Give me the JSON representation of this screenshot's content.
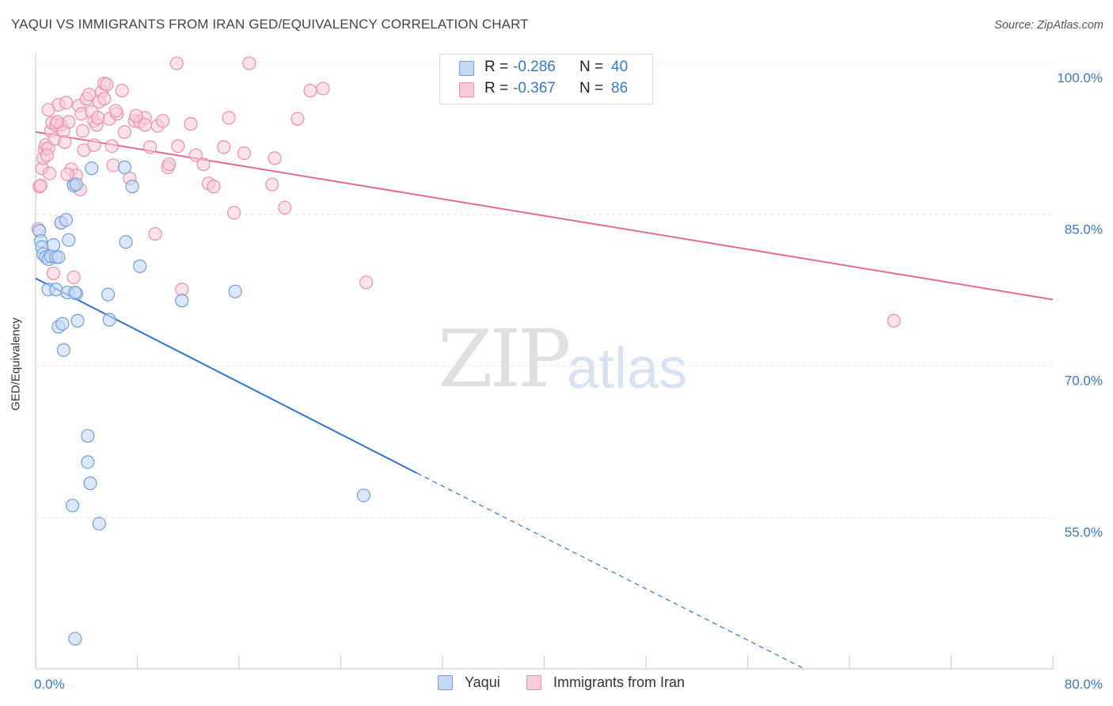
{
  "title": "YAQUI VS IMMIGRANTS FROM IRAN GED/EQUIVALENCY CORRELATION CHART",
  "source": "Source: ZipAtlas.com",
  "watermark": {
    "zip": "ZIP",
    "atlas": "atlas"
  },
  "stats": {
    "rows": [
      {
        "r_label": "R = ",
        "r_value": "-0.286",
        "n_label": "N = ",
        "n_value": "40"
      },
      {
        "r_label": "R = ",
        "r_value": "-0.367",
        "n_label": "N = ",
        "n_value": "86"
      }
    ]
  },
  "legend": {
    "items": [
      "Yaqui",
      "Immigrants from Iran"
    ]
  },
  "colors": {
    "yaqui_fill": "#c5d9f4",
    "yaqui_stroke": "#6f9fde",
    "yaqui_line": "#3174d0",
    "iran_fill": "#f9ccd9",
    "iran_stroke": "#ee8fae",
    "iran_line": "#e46a96",
    "tick": "#3a78c8",
    "grid": "#e6e6e6"
  },
  "chart_data": {
    "type": "scatter",
    "title": "YAQUI VS IMMIGRANTS FROM IRAN GED/EQUIVALENCY CORRELATION CHART",
    "xlabel": "",
    "ylabel": "GED/Equivalency",
    "xlim": [
      0,
      80
    ],
    "ylim": [
      40,
      102.5
    ],
    "x_tick_labels": [
      "0.0%",
      "80.0%"
    ],
    "y_ticks": [
      55,
      70,
      85,
      100
    ],
    "y_tick_labels": [
      "55.0%",
      "70.0%",
      "85.0%",
      "100.0%"
    ],
    "grid": true,
    "legend_position": "bottom-center",
    "series": [
      {
        "name": "Yaqui",
        "r": -0.286,
        "n": 40,
        "trend": {
          "x0": 0,
          "y0": 78.7,
          "x1": 30,
          "y1": 59.4,
          "dashed_to_x": 60.5,
          "dashed_to_y": 40
        },
        "points": [
          [
            0.3,
            83.4
          ],
          [
            0.4,
            82.4
          ],
          [
            0.5,
            81.8
          ],
          [
            0.6,
            81.1
          ],
          [
            0.8,
            80.8
          ],
          [
            1.0,
            80.6
          ],
          [
            1.2,
            80.9
          ],
          [
            1.4,
            82.0
          ],
          [
            1.6,
            80.8
          ],
          [
            1.8,
            80.8
          ],
          [
            2.0,
            84.2
          ],
          [
            2.4,
            84.5
          ],
          [
            2.6,
            82.5
          ],
          [
            3.0,
            87.9
          ],
          [
            3.2,
            88.0
          ],
          [
            4.4,
            89.6
          ],
          [
            1.0,
            77.6
          ],
          [
            1.6,
            77.6
          ],
          [
            2.5,
            77.3
          ],
          [
            3.2,
            77.2
          ],
          [
            1.8,
            73.9
          ],
          [
            2.1,
            74.2
          ],
          [
            3.3,
            74.5
          ],
          [
            5.7,
            77.1
          ],
          [
            5.8,
            74.6
          ],
          [
            2.2,
            71.6
          ],
          [
            7.0,
            89.7
          ],
          [
            7.6,
            87.8
          ],
          [
            7.1,
            82.3
          ],
          [
            8.2,
            79.9
          ],
          [
            11.5,
            76.5
          ],
          [
            15.7,
            77.4
          ],
          [
            4.1,
            63.1
          ],
          [
            4.1,
            60.5
          ],
          [
            4.3,
            58.4
          ],
          [
            2.9,
            56.2
          ],
          [
            5.0,
            54.4
          ],
          [
            25.8,
            57.2
          ],
          [
            3.1,
            43.0
          ],
          [
            3.1,
            77.3
          ]
        ]
      },
      {
        "name": "Immigrants from Iran",
        "r": -0.367,
        "n": 86,
        "trend": {
          "x0": 0,
          "y0": 93.2,
          "x1": 80,
          "y1": 76.6
        },
        "points": [
          [
            0.2,
            83.6
          ],
          [
            0.3,
            87.8
          ],
          [
            0.4,
            87.9
          ],
          [
            0.5,
            89.6
          ],
          [
            0.6,
            90.6
          ],
          [
            0.7,
            91.5
          ],
          [
            0.8,
            91.9
          ],
          [
            1.0,
            91.6
          ],
          [
            1.1,
            89.1
          ],
          [
            1.2,
            93.3
          ],
          [
            1.3,
            94.1
          ],
          [
            1.5,
            92.5
          ],
          [
            1.6,
            93.9
          ],
          [
            1.8,
            95.9
          ],
          [
            2.0,
            93.9
          ],
          [
            2.2,
            93.3
          ],
          [
            2.4,
            96.1
          ],
          [
            2.6,
            94.2
          ],
          [
            2.8,
            89.5
          ],
          [
            3.0,
            88.1
          ],
          [
            3.2,
            88.9
          ],
          [
            3.4,
            95.8
          ],
          [
            3.6,
            95.0
          ],
          [
            3.8,
            91.4
          ],
          [
            4.0,
            96.5
          ],
          [
            4.2,
            96.9
          ],
          [
            4.4,
            95.2
          ],
          [
            4.6,
            94.3
          ],
          [
            4.8,
            93.9
          ],
          [
            5.0,
            96.2
          ],
          [
            5.2,
            97.2
          ],
          [
            5.4,
            98.0
          ],
          [
            5.6,
            97.9
          ],
          [
            5.8,
            94.5
          ],
          [
            6.0,
            91.8
          ],
          [
            6.4,
            95.0
          ],
          [
            6.8,
            97.3
          ],
          [
            7.0,
            93.2
          ],
          [
            7.4,
            88.6
          ],
          [
            7.8,
            94.3
          ],
          [
            8.2,
            94.2
          ],
          [
            8.6,
            94.6
          ],
          [
            9.0,
            91.7
          ],
          [
            9.6,
            93.8
          ],
          [
            10.0,
            94.3
          ],
          [
            10.4,
            89.7
          ],
          [
            11.2,
            91.8
          ],
          [
            12.2,
            94.0
          ],
          [
            12.6,
            90.9
          ],
          [
            13.2,
            90.0
          ],
          [
            13.6,
            88.1
          ],
          [
            14.0,
            87.8
          ],
          [
            14.8,
            91.7
          ],
          [
            15.2,
            94.6
          ],
          [
            15.6,
            85.2
          ],
          [
            16.4,
            91.1
          ],
          [
            18.6,
            88.0
          ],
          [
            18.8,
            90.6
          ],
          [
            19.6,
            85.7
          ],
          [
            20.6,
            94.5
          ],
          [
            21.6,
            97.3
          ],
          [
            22.6,
            97.5
          ],
          [
            11.1,
            100.0
          ],
          [
            16.8,
            100.0
          ],
          [
            26.0,
            78.3
          ],
          [
            67.5,
            74.5
          ],
          [
            11.5,
            77.6
          ],
          [
            9.4,
            83.1
          ],
          [
            3.0,
            78.8
          ],
          [
            1.4,
            79.2
          ],
          [
            2.5,
            89.0
          ],
          [
            3.5,
            87.5
          ],
          [
            4.6,
            91.9
          ],
          [
            5.4,
            96.5
          ],
          [
            6.3,
            95.3
          ],
          [
            7.9,
            94.8
          ],
          [
            2.0,
            84.2
          ],
          [
            1.0,
            95.4
          ],
          [
            3.7,
            93.3
          ],
          [
            8.6,
            93.9
          ],
          [
            10.5,
            90.0
          ],
          [
            4.9,
            94.6
          ],
          [
            0.9,
            90.9
          ],
          [
            2.3,
            92.2
          ],
          [
            6.1,
            89.9
          ],
          [
            1.7,
            94.2
          ]
        ]
      }
    ]
  }
}
